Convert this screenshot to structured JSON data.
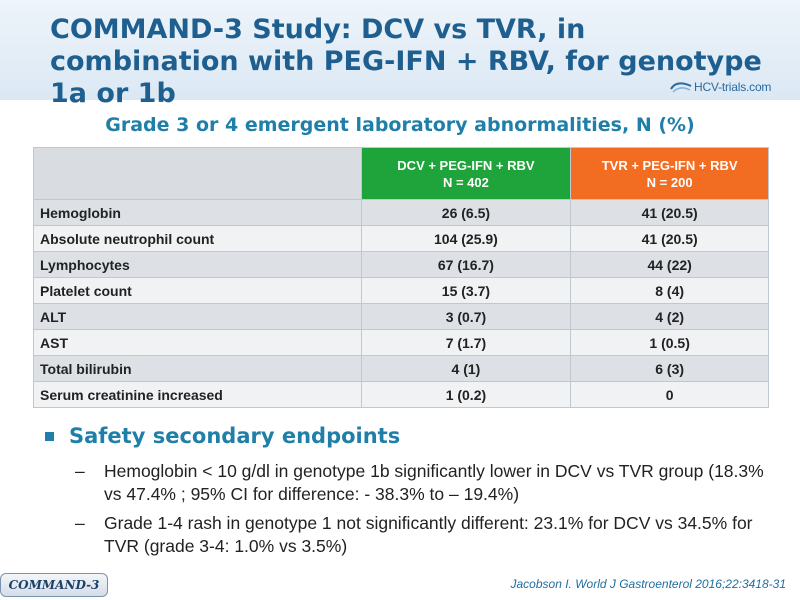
{
  "title": "COMMAND-3 Study: DCV vs TVR, in combination with PEG-IFN + RBV, for genotype 1a or 1b",
  "logo": {
    "text": "HCV-trials.com",
    "icon": "hcv-logo-icon"
  },
  "subtitle": "Grade 3 or 4 emergent laboratory abnormalities, N (%)",
  "table": {
    "columns": [
      {
        "line1": "DCV + PEG-IFN + RBV",
        "line2": "N = 402",
        "color": "#1fa33b"
      },
      {
        "line1": "TVR + PEG-IFN + RBV",
        "line2": "N = 200",
        "color": "#f26d21"
      }
    ],
    "rows": [
      {
        "label": "Hemoglobin",
        "dcv": "26 (6.5)",
        "tvr": "41 (20.5)"
      },
      {
        "label": "Absolute neutrophil count",
        "dcv": "104 (25.9)",
        "tvr": "41 (20.5)"
      },
      {
        "label": "Lymphocytes",
        "dcv": "67 (16.7)",
        "tvr": "44 (22)"
      },
      {
        "label": "Platelet count",
        "dcv": "15 (3.7)",
        "tvr": "8 (4)"
      },
      {
        "label": "ALT",
        "dcv": "3 (0.7)",
        "tvr": "4 (2)"
      },
      {
        "label": "AST",
        "dcv": "7 (1.7)",
        "tvr": "1 (0.5)"
      },
      {
        "label": "Total bilirubin",
        "dcv": "4 (1)",
        "tvr": "6 (3)"
      },
      {
        "label": "Serum creatinine increased",
        "dcv": "1 (0.2)",
        "tvr": "0"
      }
    ]
  },
  "bullet": {
    "heading": "Safety secondary endpoints",
    "items": [
      {
        "dash": "–",
        "text": "Hemoglobin < 10 g/dl in genotype 1b significantly lower in DCV vs TVR group (18.3% vs 47.4% ; 95% CI for difference: - 38.3% to – 19.4%)"
      },
      {
        "dash": "–",
        "text": "Grade 1-4 rash in genotype 1 not significantly different: 23.1% for DCV vs 34.5% for TVR (grade 3-4: 1.0% vs 3.5%)"
      }
    ]
  },
  "footer": {
    "tag": "COMMAND-3",
    "citation": "Jacobson I. World J Gastroenterol 2016;22:3418-31"
  }
}
